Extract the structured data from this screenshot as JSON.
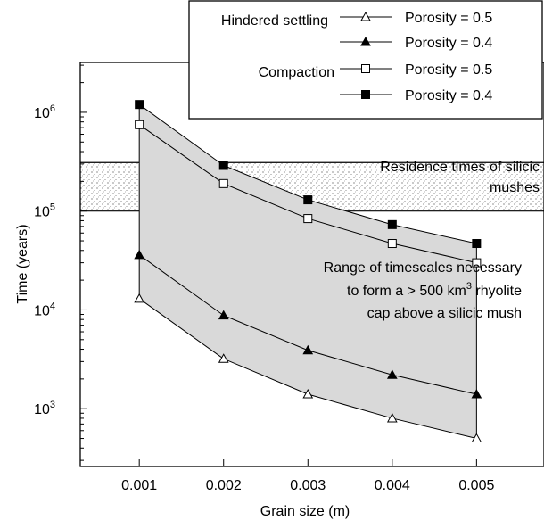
{
  "chart_data": {
    "type": "line",
    "xlabel": "Grain size (m)",
    "ylabel": "Time (years)",
    "x": [
      0.001,
      0.002,
      0.003,
      0.004,
      0.005
    ],
    "x_tick_labels": [
      "0.001",
      "0.002",
      "0.003",
      "0.004",
      "0.005"
    ],
    "xlim": [
      0.0003,
      0.0058
    ],
    "ylim": [
      260,
      3200000
    ],
    "y_scale": "log",
    "y_ticks": [
      {
        "value": 1000,
        "base": "10",
        "exp": "3"
      },
      {
        "value": 10000,
        "base": "10",
        "exp": "4"
      },
      {
        "value": 100000,
        "base": "10",
        "exp": "5"
      },
      {
        "value": 1000000,
        "base": "10",
        "exp": "6"
      }
    ],
    "grid": false,
    "series": [
      {
        "group": "Hindered settling",
        "name": "Porosity = 0.5",
        "marker": "open-triangle",
        "values": [
          13000,
          3200,
          1400,
          800,
          500
        ]
      },
      {
        "group": "Hindered settling",
        "name": "Porosity = 0.4",
        "marker": "filled-triangle",
        "values": [
          36000,
          8800,
          3900,
          2200,
          1400
        ]
      },
      {
        "group": "Compaction",
        "name": "Porosity = 0.5",
        "marker": "open-square",
        "values": [
          750000,
          190000,
          84000,
          47000,
          30000
        ]
      },
      {
        "group": "Compaction",
        "name": "Porosity = 0.4",
        "marker": "filled-square",
        "values": [
          1200000,
          290000,
          130000,
          73000,
          47000
        ]
      }
    ],
    "shaded_range": {
      "lower_series": 0,
      "upper_series": 3,
      "color": "#d9d9d9",
      "label_lines": [
        "Range of timescales necessary",
        "to form a > 500 km",
        "3",
        " rhyolite",
        "cap above a silicic mush"
      ]
    },
    "band": {
      "y_range": [
        100000,
        310000
      ],
      "label_lines": [
        "Residence times of silicic",
        "mushes"
      ]
    },
    "legend": {
      "placement": "top-right",
      "groups": [
        "Hindered settling",
        "Compaction"
      ]
    }
  }
}
